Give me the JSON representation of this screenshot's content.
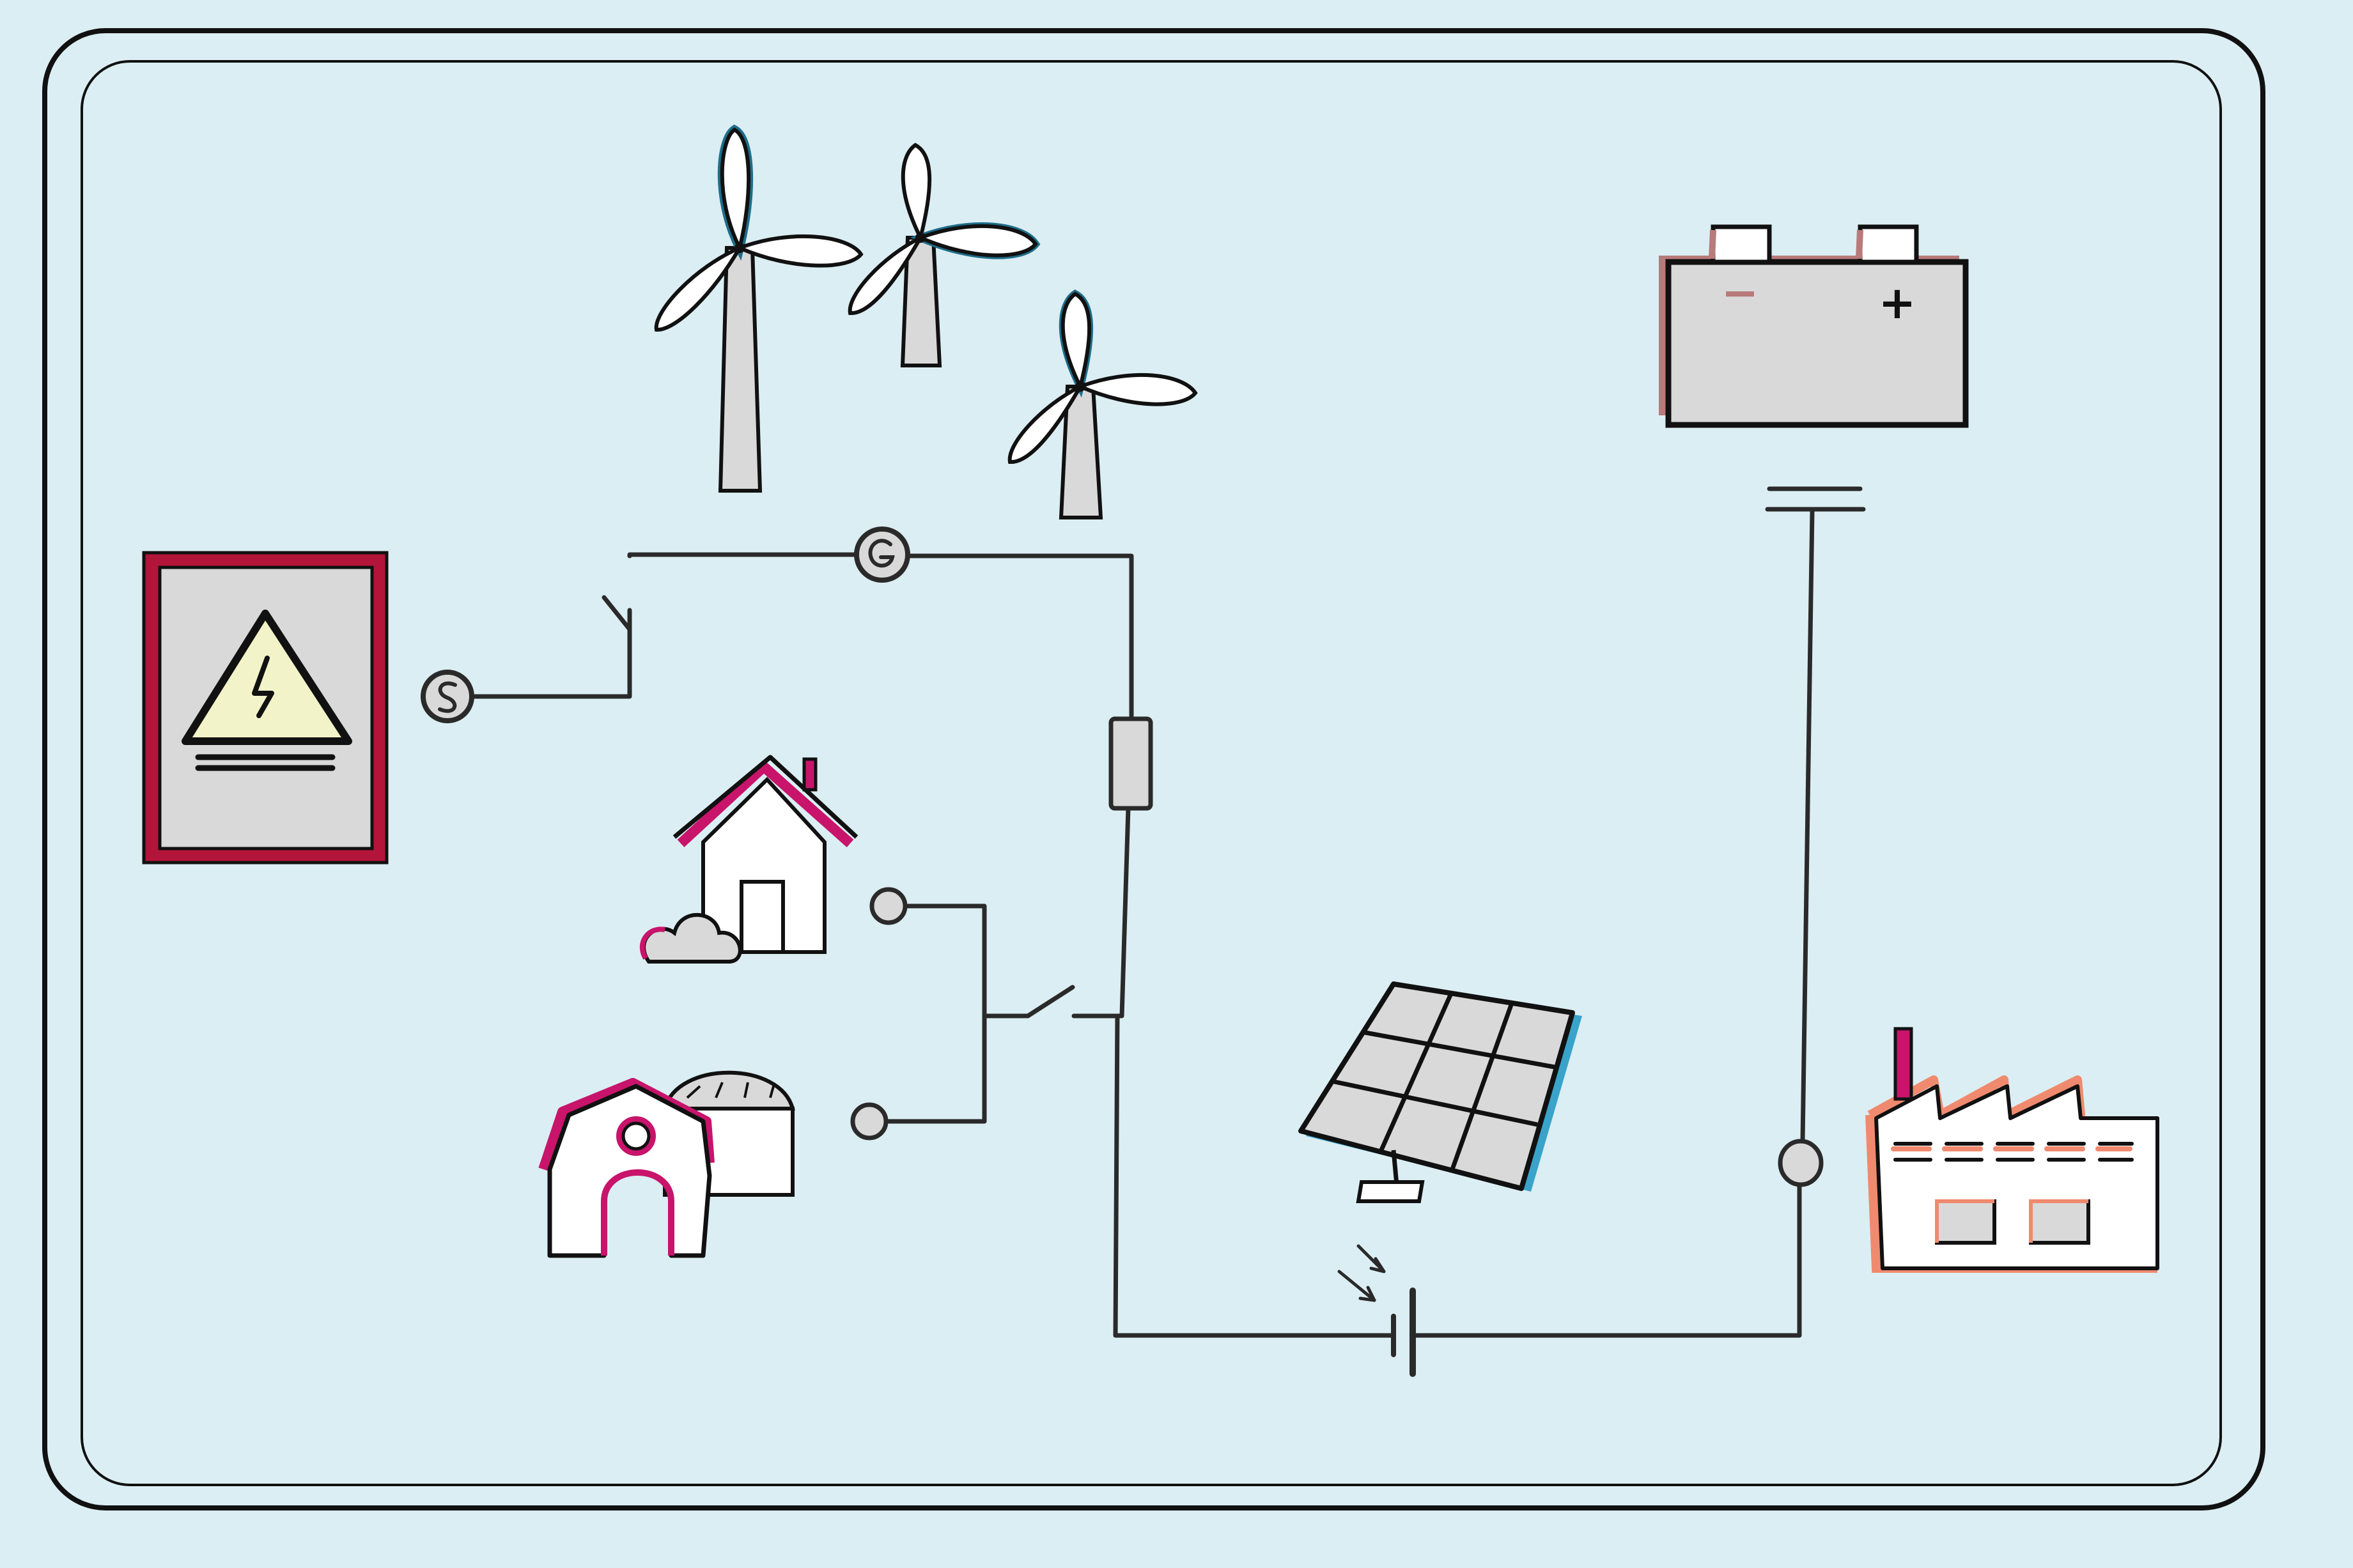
{
  "diagram": {
    "theme": {
      "background": "#dbeef3",
      "ink": "#222222",
      "panel_fill": "#d9d9d9",
      "white_fill": "#ffffff",
      "accent_red": "#b3143a",
      "accent_magenta": "#c8146b",
      "accent_teal": "#1f6e8a",
      "accent_blue": "#3aa3c9",
      "accent_rose": "#b87a7a",
      "accent_salmon": "#f08a6e",
      "sign_yellow": "#f2f3c8"
    },
    "battery": {
      "minus_label": "−",
      "plus_label": "+"
    },
    "icons": [
      "high-voltage-sign-icon",
      "wind-turbine-icon",
      "house-icon",
      "farm-barn-icon",
      "biogas-dome-icon",
      "battery-icon",
      "solar-panel-icon",
      "factory-icon",
      "generator-symbol-icon",
      "ac-source-symbol-icon",
      "switch-symbol-icon",
      "resistor-symbol-icon",
      "capacitor-symbol-icon",
      "photo-cell-symbol-icon",
      "lamp-node-icon"
    ]
  }
}
